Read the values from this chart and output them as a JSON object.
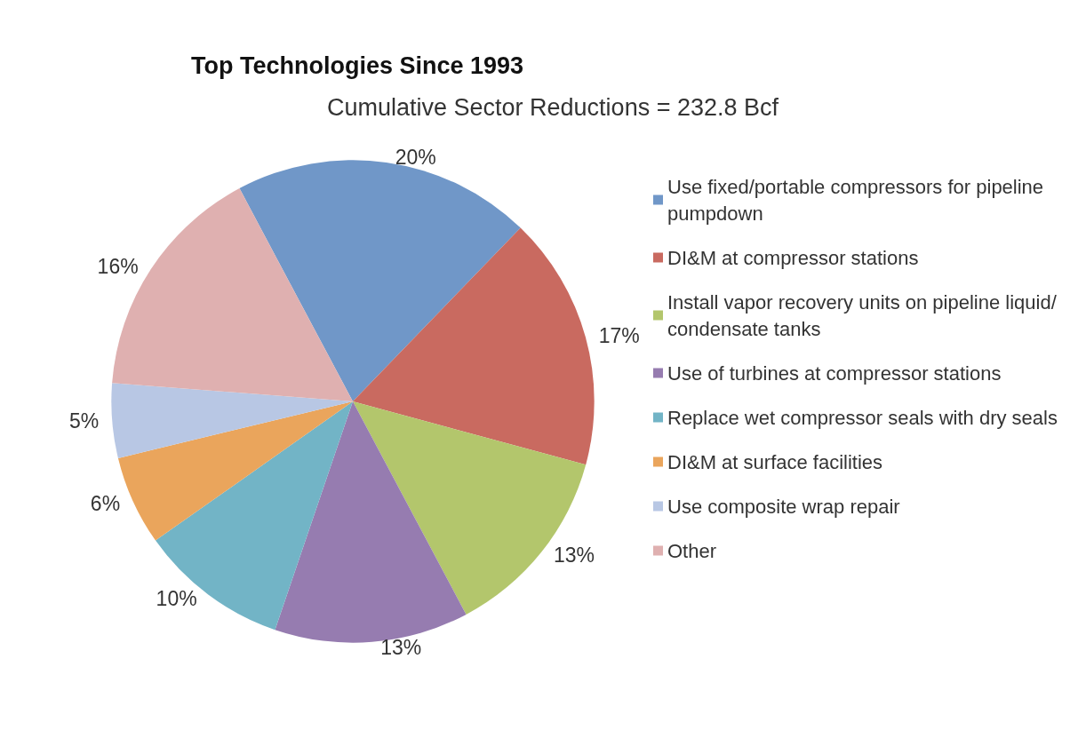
{
  "chart_data": {
    "type": "pie",
    "title": "Top Technologies Since 1993",
    "subtitle": "Cumulative Sector Reductions = 232.8 Bcf",
    "categories": [
      "Use fixed/portable compressors for pipeline pumpdown",
      "DI&M at compressor stations",
      "Install vapor recovery units on pipeline liquid/condensate tanks",
      "Use of turbines at compressor stations",
      "Replace wet compressor seals with dry seals",
      "DI&M at surface facilities",
      "Use composite wrap repair",
      "Other"
    ],
    "values": [
      20,
      17,
      13,
      13,
      10,
      6,
      5,
      16
    ],
    "value_labels": [
      "20%",
      "17%",
      "13%",
      "13%",
      "10%",
      "6%",
      "5%",
      "16%"
    ],
    "colors": [
      "#7097c8",
      "#c96a60",
      "#b3c66c",
      "#967cb0",
      "#72b4c6",
      "#eaa55c",
      "#b8c7e4",
      "#dfb0b0"
    ],
    "legend": "right"
  }
}
